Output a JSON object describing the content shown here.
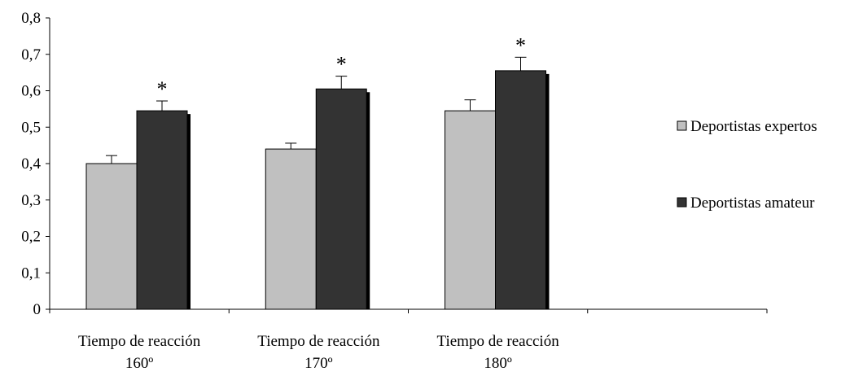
{
  "chart_data": {
    "type": "bar",
    "title": "",
    "xlabel": "",
    "ylabel": "",
    "ylim": [
      0,
      0.8
    ],
    "yticks": [
      "0",
      "0,1",
      "0,2",
      "0,3",
      "0,4",
      "0,5",
      "0,6",
      "0,7",
      "0,8"
    ],
    "categories": [
      [
        "Tiempo de reacción",
        "160º"
      ],
      [
        "Tiempo de reacción",
        "170º"
      ],
      [
        "Tiempo de reacción",
        "180º"
      ],
      [
        "",
        ""
      ]
    ],
    "series": [
      {
        "name": "Deportistas expertos",
        "color": "#c0c0c0",
        "values": [
          0.4,
          0.44,
          0.545,
          null
        ],
        "errors": [
          0.022,
          0.016,
          0.03,
          null
        ]
      },
      {
        "name": "Deportistas amateur",
        "color": "#333333",
        "values": [
          0.545,
          0.605,
          0.655,
          null
        ],
        "errors": [
          0.027,
          0.035,
          0.037,
          null
        ]
      }
    ],
    "annotations": [
      "*",
      "*",
      "*"
    ],
    "grid": false,
    "legend_position": "right",
    "error_bars": true
  }
}
